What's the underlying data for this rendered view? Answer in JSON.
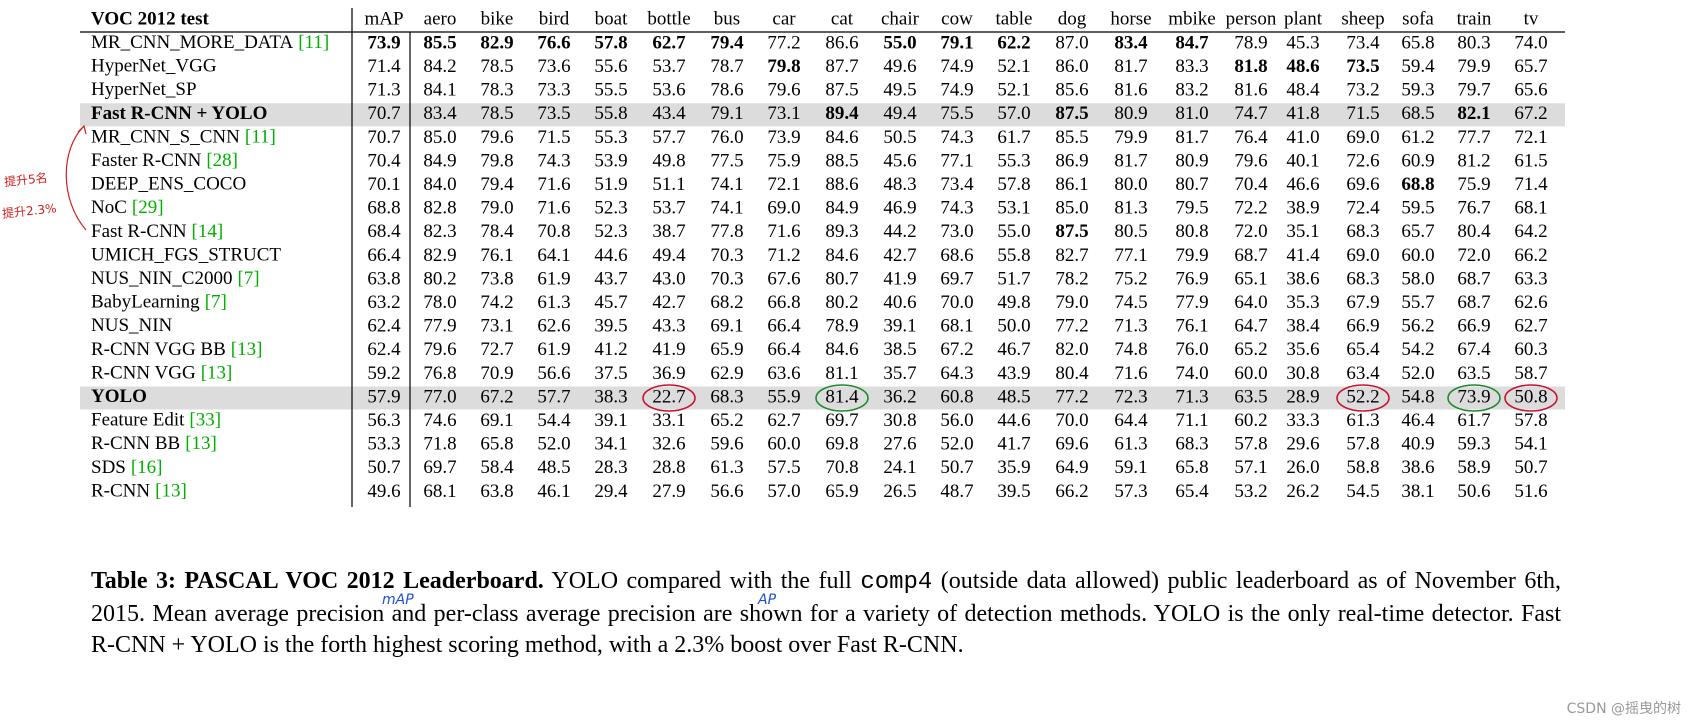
{
  "table": {
    "header": [
      "VOC 2012 test",
      "mAP",
      "aero",
      "bike",
      "bird",
      "boat",
      "bottle",
      "bus",
      "car",
      "cat",
      "chair",
      "cow",
      "table",
      "dog",
      "horse",
      "mbike",
      "person",
      "plant",
      "sheep",
      "sofa",
      "train",
      "tv"
    ],
    "rows": [
      {
        "name": "MR_CNN_MORE_DATA",
        "ref": "[11]",
        "values": [
          {
            "text": "73.9",
            "bold": true
          },
          {
            "text": "85.5",
            "bold": true
          },
          {
            "text": "82.9",
            "bold": true
          },
          {
            "text": "76.6",
            "bold": true
          },
          {
            "text": "57.8",
            "bold": true
          },
          {
            "text": "62.7",
            "bold": true
          },
          {
            "text": "79.4",
            "bold": true
          },
          "77.2",
          "86.6",
          {
            "text": "55.0",
            "bold": true
          },
          {
            "text": "79.1",
            "bold": true
          },
          {
            "text": "62.2",
            "bold": true
          },
          "87.0",
          {
            "text": "83.4",
            "bold": true
          },
          {
            "text": "84.7",
            "bold": true
          },
          "78.9",
          "45.3",
          "73.4",
          "65.8",
          "80.3",
          "74.0"
        ]
      },
      {
        "name": "HyperNet_VGG",
        "values": [
          "71.4",
          "84.2",
          "78.5",
          "73.6",
          "55.6",
          "53.7",
          "78.7",
          {
            "text": "79.8",
            "bold": true
          },
          "87.7",
          "49.6",
          "74.9",
          "52.1",
          "86.0",
          "81.7",
          "83.3",
          {
            "text": "81.8",
            "bold": true
          },
          {
            "text": "48.6",
            "bold": true
          },
          {
            "text": "73.5",
            "bold": true
          },
          "59.4",
          "79.9",
          "65.7"
        ]
      },
      {
        "name": "HyperNet_SP",
        "values": [
          "71.3",
          "84.1",
          "78.3",
          "73.3",
          "55.5",
          "53.6",
          "78.6",
          "79.6",
          "87.5",
          "49.5",
          "74.9",
          "52.1",
          "85.6",
          "81.6",
          "83.2",
          "81.6",
          "48.4",
          "73.2",
          "59.3",
          "79.7",
          "65.6"
        ]
      },
      {
        "name": "Fast R-CNN + YOLO",
        "bold": true,
        "highlight": true,
        "values": [
          "70.7",
          "83.4",
          "78.5",
          "73.5",
          "55.8",
          "43.4",
          "79.1",
          "73.1",
          {
            "text": "89.4",
            "bold": true
          },
          "49.4",
          "75.5",
          "57.0",
          {
            "text": "87.5",
            "bold": true
          },
          "80.9",
          "81.0",
          "74.7",
          "41.8",
          "71.5",
          "68.5",
          {
            "text": "82.1",
            "bold": true
          },
          "67.2"
        ]
      },
      {
        "name": "MR_CNN_S_CNN",
        "ref": "[11]",
        "values": [
          "70.7",
          "85.0",
          "79.6",
          "71.5",
          "55.3",
          "57.7",
          "76.0",
          "73.9",
          "84.6",
          "50.5",
          "74.3",
          "61.7",
          "85.5",
          "79.9",
          "81.7",
          "76.4",
          "41.0",
          "69.0",
          "61.2",
          "77.7",
          "72.1"
        ]
      },
      {
        "name": "Faster R-CNN",
        "ref": "[28]",
        "values": [
          "70.4",
          "84.9",
          "79.8",
          "74.3",
          "53.9",
          "49.8",
          "77.5",
          "75.9",
          "88.5",
          "45.6",
          "77.1",
          "55.3",
          "86.9",
          "81.7",
          "80.9",
          "79.6",
          "40.1",
          "72.6",
          "60.9",
          "81.2",
          "61.5"
        ]
      },
      {
        "name": "DEEP_ENS_COCO",
        "values": [
          "70.1",
          "84.0",
          "79.4",
          "71.6",
          "51.9",
          "51.1",
          "74.1",
          "72.1",
          "88.6",
          "48.3",
          "73.4",
          "57.8",
          "86.1",
          "80.0",
          "80.7",
          "70.4",
          "46.6",
          "69.6",
          {
            "text": "68.8",
            "bold": true
          },
          "75.9",
          "71.4"
        ]
      },
      {
        "name": "NoC",
        "ref": "[29]",
        "values": [
          "68.8",
          "82.8",
          "79.0",
          "71.6",
          "52.3",
          "53.7",
          "74.1",
          "69.0",
          "84.9",
          "46.9",
          "74.3",
          "53.1",
          "85.0",
          "81.3",
          "79.5",
          "72.2",
          "38.9",
          "72.4",
          "59.5",
          "76.7",
          "68.1"
        ]
      },
      {
        "name": "Fast R-CNN",
        "ref": "[14]",
        "values": [
          "68.4",
          "82.3",
          "78.4",
          "70.8",
          "52.3",
          "38.7",
          "77.8",
          "71.6",
          "89.3",
          "44.2",
          "73.0",
          "55.0",
          {
            "text": "87.5",
            "bold": true
          },
          "80.5",
          "80.8",
          "72.0",
          "35.1",
          "68.3",
          "65.7",
          "80.4",
          "64.2"
        ]
      },
      {
        "name": "UMICH_FGS_STRUCT",
        "values": [
          "66.4",
          "82.9",
          "76.1",
          "64.1",
          "44.6",
          "49.4",
          "70.3",
          "71.2",
          "84.6",
          "42.7",
          "68.6",
          "55.8",
          "82.7",
          "77.1",
          "79.9",
          "68.7",
          "41.4",
          "69.0",
          "60.0",
          "72.0",
          "66.2"
        ]
      },
      {
        "name": "NUS_NIN_C2000",
        "ref": "[7]",
        "values": [
          "63.8",
          "80.2",
          "73.8",
          "61.9",
          "43.7",
          "43.0",
          "70.3",
          "67.6",
          "80.7",
          "41.9",
          "69.7",
          "51.7",
          "78.2",
          "75.2",
          "76.9",
          "65.1",
          "38.6",
          "68.3",
          "58.0",
          "68.7",
          "63.3"
        ]
      },
      {
        "name": "BabyLearning",
        "ref": "[7]",
        "values": [
          "63.2",
          "78.0",
          "74.2",
          "61.3",
          "45.7",
          "42.7",
          "68.2",
          "66.8",
          "80.2",
          "40.6",
          "70.0",
          "49.8",
          "79.0",
          "74.5",
          "77.9",
          "64.0",
          "35.3",
          "67.9",
          "55.7",
          "68.7",
          "62.6"
        ]
      },
      {
        "name": "NUS_NIN",
        "values": [
          "62.4",
          "77.9",
          "73.1",
          "62.6",
          "39.5",
          "43.3",
          "69.1",
          "66.4",
          "78.9",
          "39.1",
          "68.1",
          "50.0",
          "77.2",
          "71.3",
          "76.1",
          "64.7",
          "38.4",
          "66.9",
          "56.2",
          "66.9",
          "62.7"
        ]
      },
      {
        "name": "R-CNN VGG BB",
        "ref": "[13]",
        "values": [
          "62.4",
          "79.6",
          "72.7",
          "61.9",
          "41.2",
          "41.9",
          "65.9",
          "66.4",
          "84.6",
          "38.5",
          "67.2",
          "46.7",
          "82.0",
          "74.8",
          "76.0",
          "65.2",
          "35.6",
          "65.4",
          "54.2",
          "67.4",
          "60.3"
        ]
      },
      {
        "name": "R-CNN VGG",
        "ref": "[13]",
        "values": [
          "59.2",
          "76.8",
          "70.9",
          "56.6",
          "37.5",
          "36.9",
          "62.9",
          "63.6",
          "81.1",
          "35.7",
          "64.3",
          "43.9",
          "80.4",
          "71.6",
          "74.0",
          "60.0",
          "30.8",
          "63.4",
          "52.0",
          "63.5",
          "58.7"
        ]
      },
      {
        "name": "YOLO",
        "bold": true,
        "highlight": true,
        "values": [
          "57.9",
          "77.0",
          "67.2",
          "57.7",
          "38.3",
          {
            "text": "22.7",
            "circle": "#c8102e"
          },
          "68.3",
          "55.9",
          {
            "text": "81.4",
            "circle": "#1a8a2a"
          },
          "36.2",
          "60.8",
          "48.5",
          "77.2",
          "72.3",
          "71.3",
          "63.5",
          "28.9",
          {
            "text": "52.2",
            "circle": "#c8102e"
          },
          "54.8",
          {
            "text": "73.9",
            "circle": "#1a8a2a"
          },
          {
            "text": "50.8",
            "circle": "#c8102e"
          }
        ]
      },
      {
        "name": "Feature Edit",
        "ref": "[33]",
        "values": [
          "56.3",
          "74.6",
          "69.1",
          "54.4",
          "39.1",
          "33.1",
          "65.2",
          "62.7",
          "69.7",
          "30.8",
          "56.0",
          "44.6",
          "70.0",
          "64.4",
          "71.1",
          "60.2",
          "33.3",
          "61.3",
          "46.4",
          "61.7",
          "57.8"
        ]
      },
      {
        "name": "R-CNN BB",
        "ref": "[13]",
        "values": [
          "53.3",
          "71.8",
          "65.8",
          "52.0",
          "34.1",
          "32.6",
          "59.6",
          "60.0",
          "69.8",
          "27.6",
          "52.0",
          "41.7",
          "69.6",
          "61.3",
          "68.3",
          "57.8",
          "29.6",
          "57.8",
          "40.9",
          "59.3",
          "54.1"
        ]
      },
      {
        "name": "SDS",
        "ref": "[16]",
        "values": [
          "50.7",
          "69.7",
          "58.4",
          "48.5",
          "28.3",
          "28.8",
          "61.3",
          "57.5",
          "70.8",
          "24.1",
          "50.7",
          "35.9",
          "64.9",
          "59.1",
          "65.8",
          "57.1",
          "26.0",
          "58.8",
          "38.6",
          "58.9",
          "50.7"
        ]
      },
      {
        "name": "R-CNN",
        "ref": "[13]",
        "values": [
          "49.6",
          "68.1",
          "63.8",
          "46.1",
          "29.4",
          "27.9",
          "56.6",
          "57.0",
          "65.9",
          "26.5",
          "48.7",
          "39.5",
          "66.2",
          "57.3",
          "65.4",
          "53.2",
          "26.2",
          "54.5",
          "38.1",
          "50.6",
          "51.6"
        ]
      }
    ]
  },
  "caption": {
    "label": "Table 3:",
    "title": "PASCAL VOC 2012 Leaderboard.",
    "text_before": "YOLO compared with the full",
    "code": "comp4",
    "text_after": "(outside data allowed) public leaderboard as of November 6th, 2015. Mean average precision and per-class average precision are shown for a variety of detection methods. YOLO is the only real-time detector. Fast R-CNN + YOLO is the forth highest scoring method, with a 2.3% boost over Fast R-CNN."
  },
  "margin_notes": [
    "提升5名",
    "提升2.3%"
  ],
  "above_notes": [
    "mAP",
    "AP"
  ],
  "watermark": "CSDN @摇曳的树"
}
